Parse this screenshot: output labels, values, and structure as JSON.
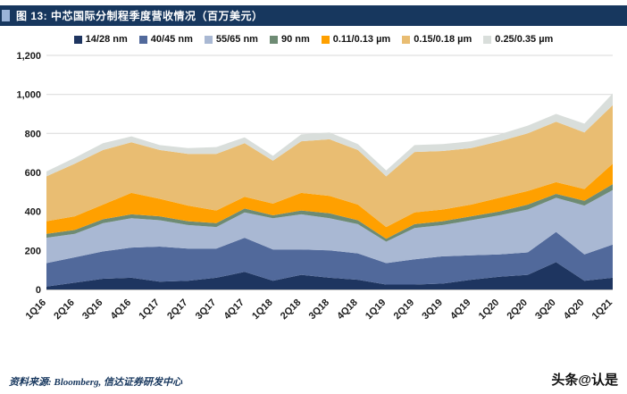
{
  "header": {
    "title": "图 13:  中芯国际分制程季度营收情况（百万美元）"
  },
  "footer": {
    "source": "资料来源: Bloomberg,  信达证券研发中心",
    "watermark": "头条@认是"
  },
  "colors": {
    "title_bar_bg": "#17375e",
    "title_accent": "#9ab3d8",
    "gridline": "#d9d9d9",
    "axis_line": "#7f7f7f"
  },
  "chart_data": {
    "type": "area",
    "stacked": true,
    "title": "中芯国际分制程季度营收情况（百万美元）",
    "xlabel": "",
    "ylabel": "",
    "ylim": [
      0,
      1200
    ],
    "ytick_values": [
      0,
      200,
      400,
      600,
      800,
      1000,
      1200
    ],
    "ytick_labels": [
      "0",
      "200",
      "400",
      "600",
      "800",
      "1,000",
      "1,200"
    ],
    "grid": true,
    "legend_position": "top",
    "categories": [
      "1Q16",
      "2Q16",
      "3Q16",
      "4Q16",
      "1Q17",
      "2Q17",
      "3Q17",
      "4Q17",
      "1Q18",
      "2Q18",
      "3Q18",
      "4Q18",
      "1Q19",
      "2Q19",
      "3Q19",
      "4Q19",
      "1Q20",
      "2Q20",
      "3Q20",
      "4Q20",
      "1Q21"
    ],
    "series": [
      {
        "name": "14/28 nm",
        "color": "#1e3560",
        "values": [
          15,
          35,
          55,
          60,
          40,
          45,
          60,
          90,
          45,
          75,
          60,
          50,
          25,
          25,
          30,
          50,
          65,
          75,
          140,
          45,
          60
        ]
      },
      {
        "name": "40/45 nm",
        "color": "#51699b",
        "values": [
          120,
          130,
          140,
          155,
          180,
          165,
          150,
          175,
          160,
          130,
          140,
          135,
          110,
          130,
          140,
          125,
          115,
          115,
          155,
          135,
          170
        ]
      },
      {
        "name": "55/65 nm",
        "color": "#a9b8d3",
        "values": [
          130,
          120,
          145,
          150,
          135,
          120,
          110,
          130,
          160,
          180,
          165,
          150,
          110,
          160,
          160,
          180,
          200,
          220,
          175,
          250,
          280
        ]
      },
      {
        "name": "90 nm",
        "color": "#6e8b74",
        "values": [
          20,
          20,
          20,
          20,
          20,
          20,
          20,
          20,
          15,
          20,
          25,
          20,
          15,
          20,
          20,
          20,
          20,
          25,
          20,
          25,
          30
        ]
      },
      {
        "name": "0.11/0.13 µm",
        "color": "#ffa000",
        "values": [
          65,
          70,
          75,
          110,
          90,
          80,
          65,
          60,
          60,
          90,
          90,
          80,
          60,
          60,
          60,
          60,
          70,
          70,
          60,
          60,
          105
        ]
      },
      {
        "name": "0.15/0.18 µm",
        "color": "#e9bd72",
        "values": [
          230,
          270,
          280,
          260,
          250,
          265,
          290,
          275,
          220,
          265,
          290,
          280,
          260,
          310,
          300,
          290,
          290,
          295,
          310,
          290,
          300
        ]
      },
      {
        "name": "0.25/0.35 µm",
        "color": "#d9dedb",
        "values": [
          25,
          30,
          35,
          30,
          25,
          30,
          35,
          30,
          25,
          35,
          35,
          30,
          30,
          35,
          35,
          35,
          35,
          40,
          40,
          45,
          60
        ]
      }
    ]
  }
}
